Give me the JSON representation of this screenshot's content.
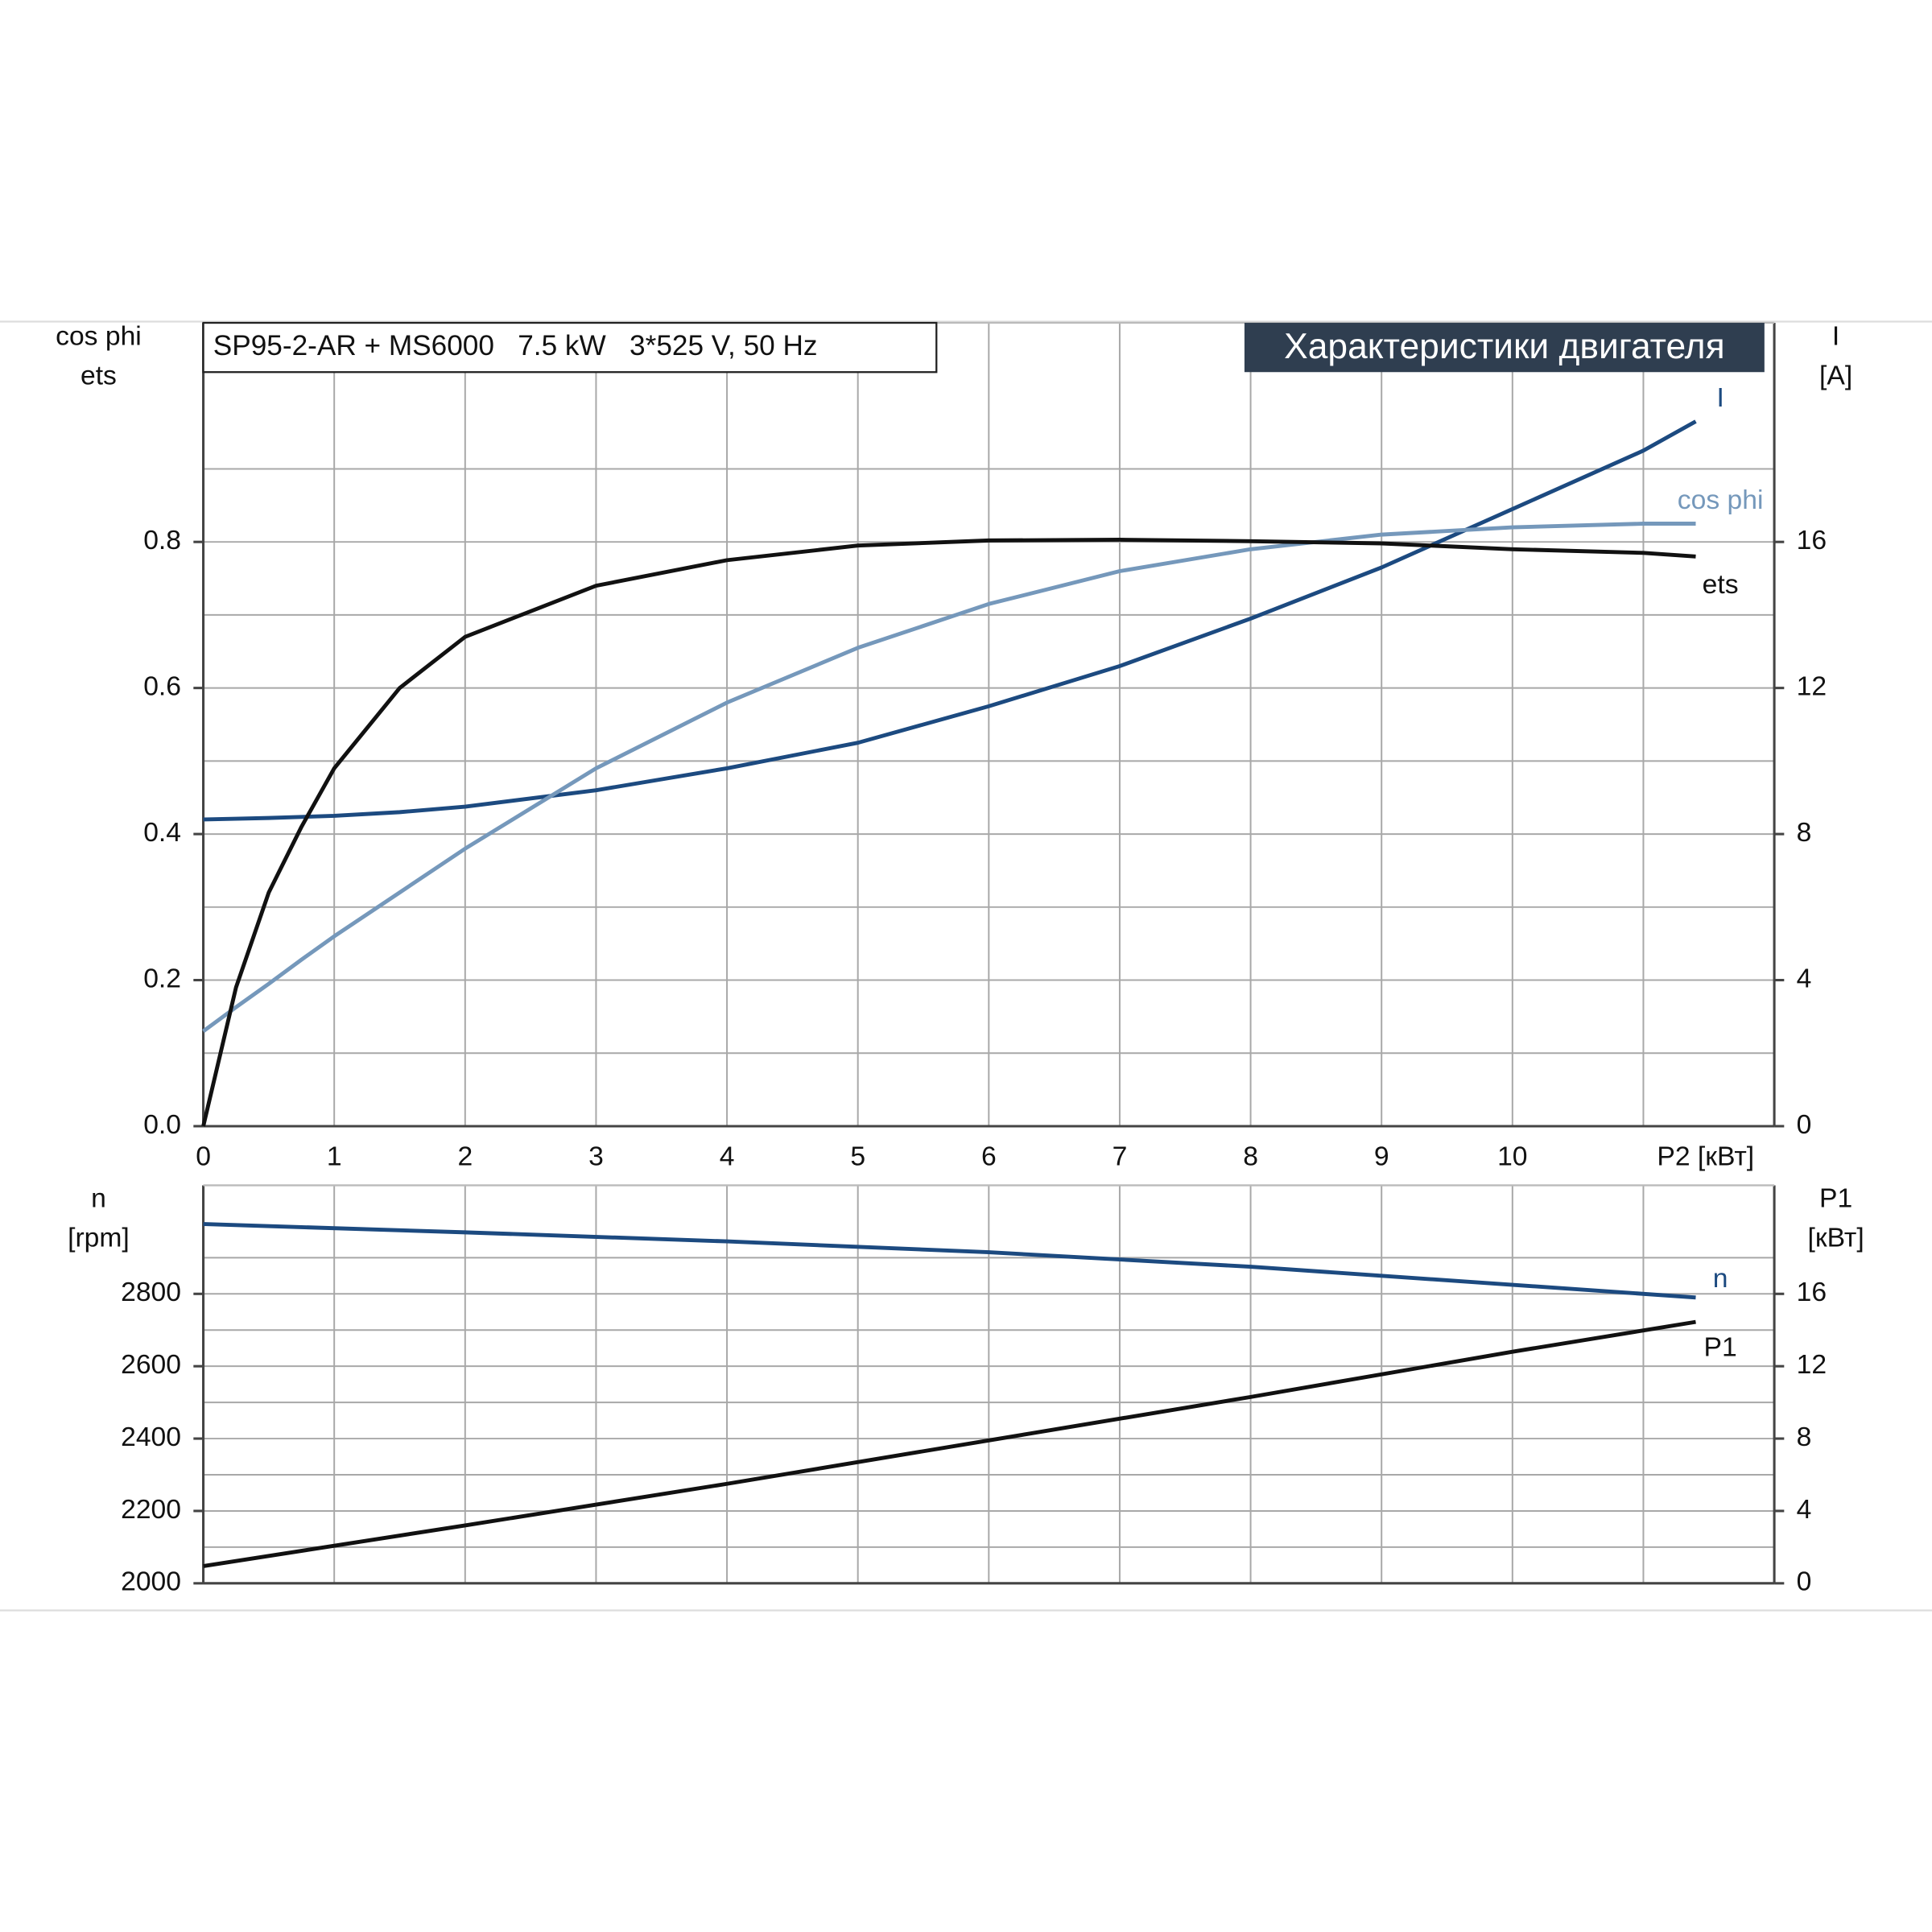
{
  "chart_data": [
    {
      "type": "line",
      "title": "SP95-2-AR + MS6000   7.5 kW   3*525 V, 50 Hz",
      "subtitle": "Характеристики двигателя",
      "ylabel": [
        "cos phi",
        "ets"
      ],
      "y2label": [
        "I",
        "[A]"
      ],
      "xlabel": "P2 [кВт]",
      "x": [
        0,
        0.25,
        0.5,
        0.75,
        1,
        1.5,
        2,
        3,
        4,
        5,
        6,
        7,
        8,
        9,
        10,
        11,
        11.4
      ],
      "xlim": [
        0,
        12
      ],
      "xticks": [
        0,
        1,
        2,
        3,
        4,
        5,
        6,
        7,
        8,
        9,
        10
      ],
      "xtick_labels": true,
      "ylim": [
        0,
        1.1
      ],
      "yticks": [
        {
          "value": 0,
          "label": "0.0"
        },
        0.2,
        0.4,
        0.6,
        0.8
      ],
      "y2lim": [
        0,
        22
      ],
      "y2ticks": [
        0,
        4,
        8,
        12,
        16
      ],
      "grid": true,
      "series": [
        {
          "name": "I",
          "color": "#1c4a80",
          "axis": "y2",
          "values": [
            8.4,
            8.42,
            8.44,
            8.47,
            8.5,
            8.6,
            8.75,
            9.2,
            9.8,
            10.5,
            11.5,
            12.6,
            13.9,
            15.3,
            16.9,
            18.5,
            19.3
          ]
        },
        {
          "name": "cos phi",
          "color": "#7598bb",
          "values": [
            0.13,
            0.163,
            0.195,
            0.228,
            0.26,
            0.32,
            0.38,
            0.49,
            0.58,
            0.655,
            0.715,
            0.76,
            0.79,
            0.81,
            0.82,
            0.825,
            0.825
          ]
        },
        {
          "name": "ets",
          "color": "#111111",
          "values": [
            0,
            0.19,
            0.32,
            0.41,
            0.49,
            0.6,
            0.67,
            0.74,
            0.775,
            0.795,
            0.802,
            0.803,
            0.801,
            0.798,
            0.79,
            0.785,
            0.78
          ]
        }
      ]
    },
    {
      "type": "line",
      "ylabel": [
        "n",
        "[rpm]"
      ],
      "y2label": [
        "P1",
        "[кВт]"
      ],
      "x": [
        0,
        2,
        4,
        6,
        8,
        10,
        11.4
      ],
      "xlim": [
        0,
        12
      ],
      "xticks": [
        0,
        1,
        2,
        3,
        4,
        5,
        6,
        7,
        8,
        9,
        10
      ],
      "xtick_labels": false,
      "ylim": [
        2000,
        3100
      ],
      "yticks": [
        2000,
        2200,
        2400,
        2600,
        2800
      ],
      "y2lim": [
        0,
        22
      ],
      "y2ticks": [
        0,
        4,
        8,
        12,
        16
      ],
      "grid": true,
      "series": [
        {
          "name": "n",
          "color": "#1c4a80",
          "values": [
            2993,
            2970,
            2945,
            2915,
            2875,
            2825,
            2790
          ]
        },
        {
          "name": "P1",
          "color": "#111111",
          "axis": "y2",
          "values": [
            0.95,
            3.2,
            5.5,
            7.9,
            10.3,
            12.8,
            14.45
          ]
        }
      ]
    }
  ]
}
